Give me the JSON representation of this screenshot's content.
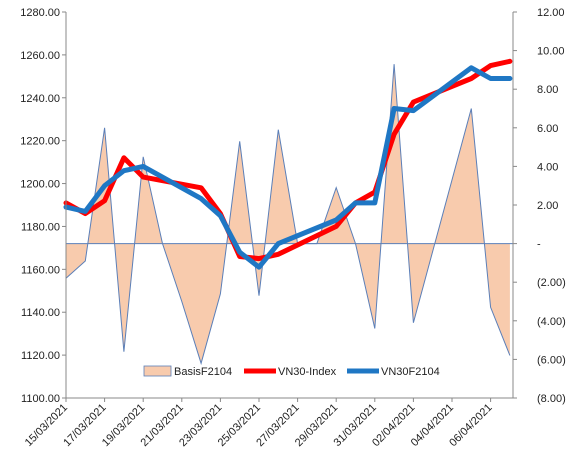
{
  "chart_data": {
    "type": "line",
    "title": "",
    "x_labels": [
      "15/03/2021",
      "17/03/2021",
      "19/03/2021",
      "21/03/2021",
      "23/03/2021",
      "25/03/2021",
      "27/03/2021",
      "29/03/2021",
      "31/03/2021",
      "02/04/2021",
      "04/04/2021",
      "06/04/2021"
    ],
    "x_dates": [
      "2021-03-15",
      "2021-03-16",
      "2021-03-17",
      "2021-03-18",
      "2021-03-19",
      "2021-03-22",
      "2021-03-23",
      "2021-03-24",
      "2021-03-25",
      "2021-03-26",
      "2021-03-29",
      "2021-03-30",
      "2021-03-31",
      "2021-04-01",
      "2021-04-02",
      "2021-04-05",
      "2021-04-06",
      "2021-04-07"
    ],
    "y_left": {
      "min": 1100,
      "max": 1280,
      "step": 20,
      "tick_labels": [
        "1100.00",
        "1120.00",
        "1140.00",
        "1160.00",
        "1180.00",
        "1200.00",
        "1220.00",
        "1240.00",
        "1260.00",
        "1280.00"
      ]
    },
    "y_right": {
      "min": -8,
      "max": 12,
      "step": 2,
      "tick_labels": [
        "(8.00)",
        "(6.00)",
        "(4.00)",
        "(2.00)",
        "-",
        "2.00",
        "4.00",
        "6.00",
        "8.00",
        "10.00",
        "12.00"
      ]
    },
    "series": [
      {
        "name": "BasisF2104",
        "type": "area",
        "axis": "right",
        "color": "#f8cbad",
        "stroke": "#5b7fb8",
        "x": [
          "2021-03-15",
          "2021-03-16",
          "2021-03-17",
          "2021-03-18",
          "2021-03-19",
          "2021-03-20",
          "2021-03-21",
          "2021-03-22",
          "2021-03-23",
          "2021-03-24",
          "2021-03-25",
          "2021-03-26",
          "2021-03-27",
          "2021-03-28",
          "2021-03-29",
          "2021-03-30",
          "2021-03-31",
          "2021-04-01",
          "2021-04-02",
          "2021-04-05",
          "2021-04-06",
          "2021-04-07"
        ],
        "values": [
          -1.8,
          -0.9,
          6.0,
          -5.6,
          4.5,
          0.0,
          -3.0,
          -6.2,
          -2.6,
          5.3,
          -2.7,
          5.9,
          0.0,
          0.0,
          2.9,
          0.0,
          -4.4,
          9.3,
          -4.1,
          7.0,
          -3.3,
          -5.8
        ]
      },
      {
        "name": "VN30-Index",
        "type": "line",
        "axis": "left",
        "color": "#ff0000",
        "x": [
          "2021-03-15",
          "2021-03-16",
          "2021-03-17",
          "2021-03-18",
          "2021-03-19",
          "2021-03-22",
          "2021-03-23",
          "2021-03-24",
          "2021-03-25",
          "2021-03-26",
          "2021-03-29",
          "2021-03-30",
          "2021-03-31",
          "2021-04-01",
          "2021-04-02",
          "2021-04-05",
          "2021-04-06",
          "2021-04-07"
        ],
        "values": [
          1191,
          1186,
          1192,
          1212,
          1203,
          1198,
          1186,
          1166,
          1165,
          1167,
          1180,
          1191,
          1196,
          1223,
          1238,
          1249,
          1255,
          1257
        ]
      },
      {
        "name": "VN30F2104",
        "type": "line",
        "axis": "left",
        "color": "#1f77c4",
        "x": [
          "2021-03-15",
          "2021-03-16",
          "2021-03-17",
          "2021-03-18",
          "2021-03-19",
          "2021-03-22",
          "2021-03-23",
          "2021-03-24",
          "2021-03-25",
          "2021-03-26",
          "2021-03-29",
          "2021-03-30",
          "2021-03-31",
          "2021-04-01",
          "2021-04-02",
          "2021-04-05",
          "2021-04-06",
          "2021-04-07"
        ],
        "values": [
          1189,
          1187,
          1199,
          1206,
          1208,
          1193,
          1185,
          1168,
          1161,
          1172,
          1183,
          1191,
          1191,
          1235,
          1234,
          1254,
          1249,
          1249
        ]
      }
    ],
    "legend": {
      "placement": "bottom-center"
    },
    "grid": false
  }
}
